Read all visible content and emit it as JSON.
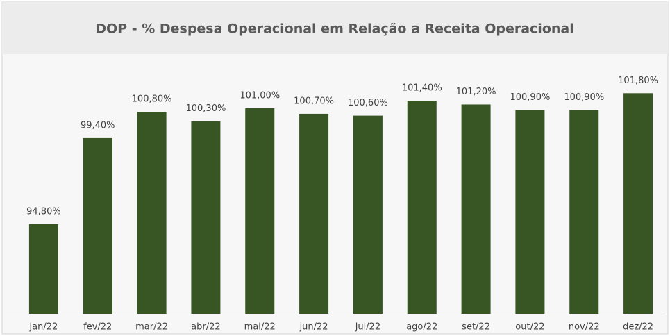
{
  "chart_data": {
    "type": "bar",
    "title": "DOP - % Despesa Operacional  em Relação a Receita Operacional",
    "categories": [
      "jan/22",
      "fev/22",
      "mar/22",
      "abr/22",
      "mai/22",
      "jun/22",
      "jul/22",
      "ago/22",
      "set/22",
      "out/22",
      "nov/22",
      "dez/22"
    ],
    "values": [
      94.8,
      99.4,
      100.8,
      100.3,
      101.0,
      100.7,
      100.6,
      101.4,
      101.2,
      100.9,
      100.9,
      101.8
    ],
    "value_labels": [
      "94,80%",
      "99,40%",
      "100,80%",
      "100,30%",
      "101,00%",
      "100,70%",
      "100,60%",
      "101,40%",
      "101,20%",
      "100,90%",
      "100,90%",
      "101,80%"
    ],
    "color": "#375623",
    "ylim": [
      90,
      103
    ]
  }
}
